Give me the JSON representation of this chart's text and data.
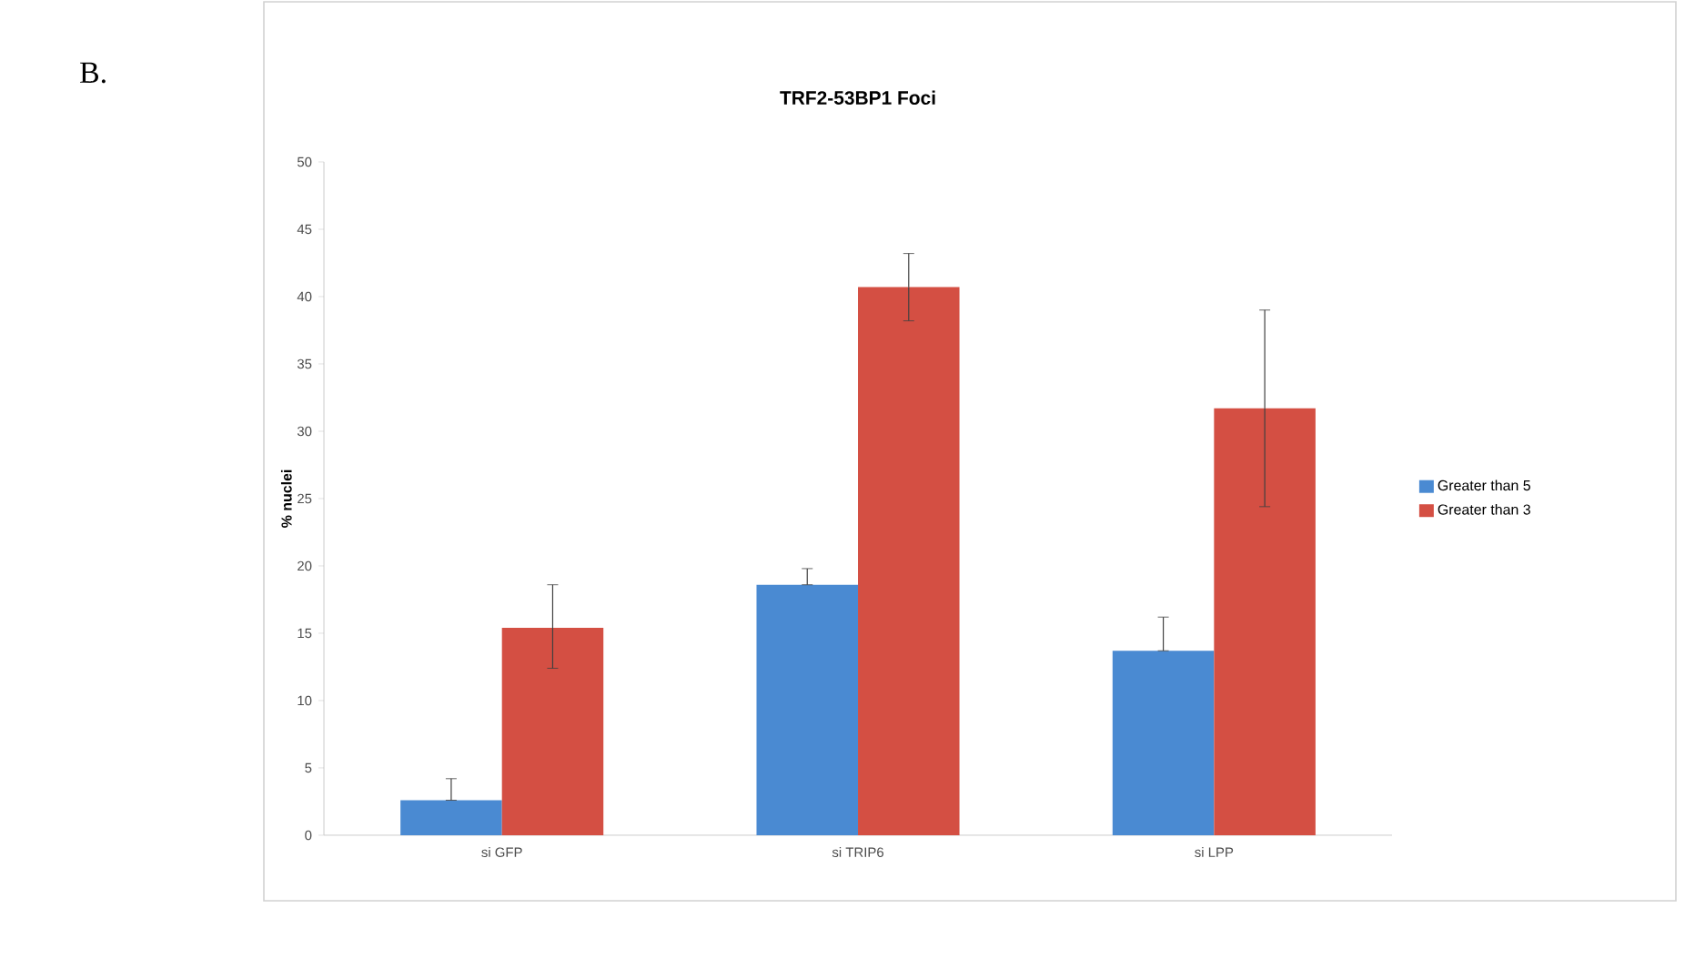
{
  "chart_data": {
    "type": "bar",
    "title": "TRF2-53BP1 Foci",
    "ylabel": "% nuclei",
    "annotations": [
      "B."
    ],
    "categories": [
      "si GFP",
      "si TRIP6",
      "si LPP"
    ],
    "series": [
      {
        "name": "Greater than 5",
        "color": "#4a8ad2",
        "values": [
          2.6,
          18.6,
          13.7
        ],
        "errors": [
          [
            2.6,
            4.2
          ],
          [
            18.6,
            19.8
          ],
          [
            13.7,
            16.2
          ]
        ]
      },
      {
        "name": "Greater than 3",
        "color": "#d44f43",
        "values": [
          15.4,
          40.7,
          31.7
        ],
        "errors": [
          [
            12.4,
            18.6
          ],
          [
            38.2,
            43.2
          ],
          [
            24.4,
            39.0
          ]
        ]
      }
    ],
    "ylim": [
      0,
      50
    ],
    "yticks": [
      0,
      5,
      10,
      15,
      20,
      25,
      30,
      35,
      40,
      45,
      50
    ],
    "grid": false,
    "legend": "right"
  }
}
